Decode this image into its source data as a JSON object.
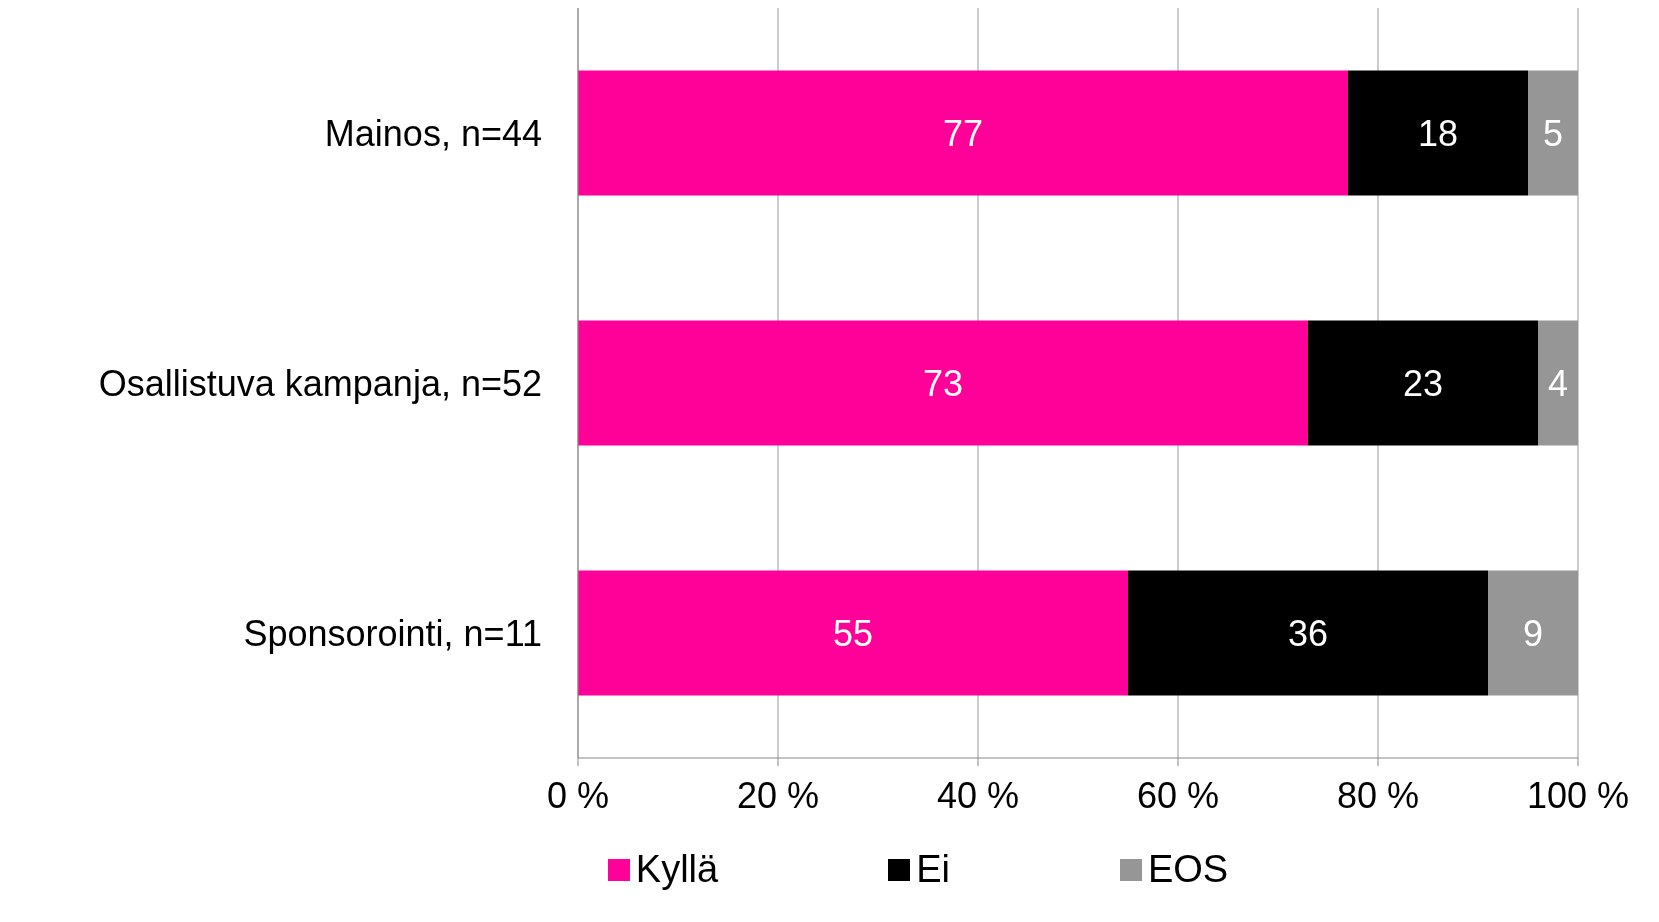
{
  "chart_data": {
    "type": "bar",
    "orientation": "horizontal",
    "stacked": true,
    "categories": [
      "Mainos, n=44",
      "Osallistuva kampanja, n=52",
      "Sponsorointi, n=11"
    ],
    "series": [
      {
        "name": "Kyllä",
        "color": "#ff0099",
        "values": [
          77,
          73,
          55
        ]
      },
      {
        "name": "Ei",
        "color": "#000000",
        "values": [
          18,
          23,
          36
        ]
      },
      {
        "name": "EOS",
        "color": "#969696",
        "values": [
          5,
          4,
          9
        ]
      }
    ],
    "xlim": [
      0,
      100
    ],
    "xticks": [
      {
        "value": 0,
        "label": "0 %"
      },
      {
        "value": 20,
        "label": "20 %"
      },
      {
        "value": 40,
        "label": "40 %"
      },
      {
        "value": 60,
        "label": "60 %"
      },
      {
        "value": 80,
        "label": "80 %"
      },
      {
        "value": 100,
        "label": "100 %"
      }
    ],
    "grid": "x",
    "legend": "bottom",
    "data_labels": true
  }
}
